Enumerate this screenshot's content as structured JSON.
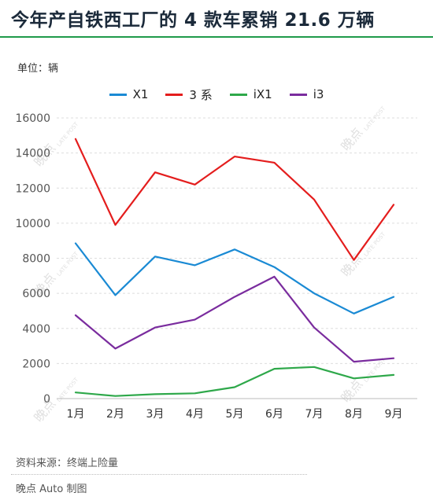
{
  "title": "今年产自铁西工厂的 4 款车累销 21.6 万辆",
  "unit_label": "单位：辆",
  "source_label": "资料来源：终端上险量",
  "credit_label": "晚点 Auto 制图",
  "watermark": {
    "brand": "晚点",
    "small": "LATE POST"
  },
  "chart_data": {
    "type": "line",
    "categories": [
      "1月",
      "2月",
      "3月",
      "4月",
      "5月",
      "6月",
      "7月",
      "8月",
      "9月"
    ],
    "series": [
      {
        "name": "X1",
        "color": "#1a8ad4",
        "values": [
          8850,
          5900,
          8100,
          7600,
          8500,
          7500,
          6000,
          4850,
          5800
        ]
      },
      {
        "name": "3 系",
        "color": "#e41d1d",
        "values": [
          14800,
          9900,
          12900,
          12200,
          13800,
          13450,
          11350,
          7900,
          11050
        ]
      },
      {
        "name": "iX1",
        "color": "#2ea84a",
        "values": [
          350,
          150,
          250,
          300,
          650,
          1700,
          1800,
          1150,
          1350
        ]
      },
      {
        "name": "i3",
        "color": "#7a2c9e",
        "values": [
          4750,
          2850,
          4050,
          4500,
          5800,
          6950,
          4050,
          2100,
          2300
        ]
      }
    ],
    "ylim": [
      0,
      16000
    ],
    "yticks": [
      0,
      2000,
      4000,
      6000,
      8000,
      10000,
      12000,
      14000,
      16000
    ],
    "grid": true,
    "legend_position": "top-center"
  }
}
